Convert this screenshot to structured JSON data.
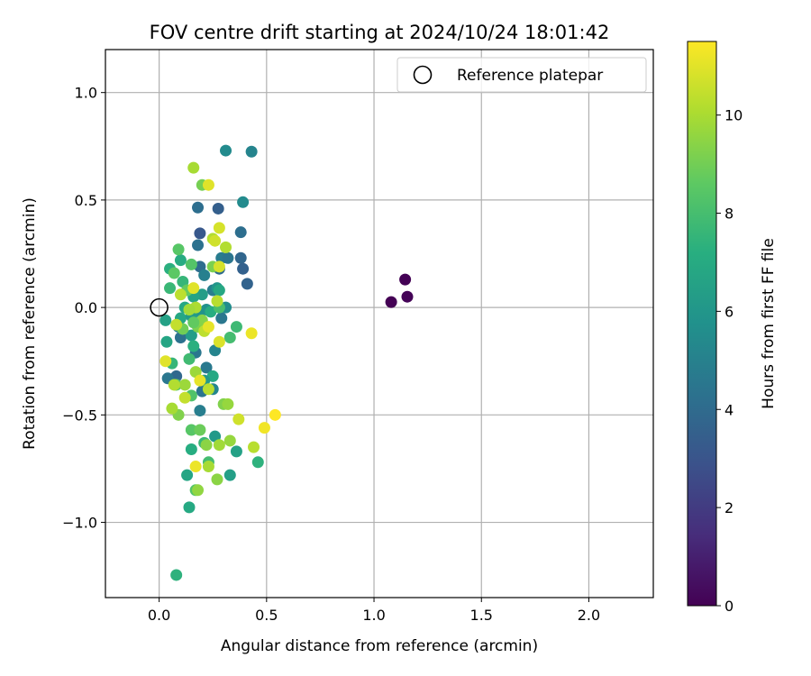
{
  "chart_data": {
    "type": "scatter",
    "title": "FOV centre drift starting at 2024/10/24 18:01:42",
    "xlabel": "Angular distance from reference (arcmin)",
    "ylabel": "Rotation from reference (arcmin)",
    "xlim": [
      -0.25,
      2.3
    ],
    "ylim": [
      -1.35,
      1.2
    ],
    "xticks": [
      0.0,
      0.5,
      1.0,
      1.5,
      2.0
    ],
    "xtick_labels": [
      "0.0",
      "0.5",
      "1.0",
      "1.5",
      "2.0"
    ],
    "yticks": [
      -1.0,
      -0.5,
      0.0,
      0.5,
      1.0
    ],
    "ytick_labels": [
      "−1.0",
      "−0.5",
      "0.0",
      "0.5",
      "1.0"
    ],
    "grid": true,
    "colormap": "viridis",
    "colorbar": {
      "label": "Hours from first FF file",
      "range": [
        0,
        11.5
      ],
      "ticks": [
        0,
        2,
        4,
        6,
        8,
        10
      ],
      "tick_labels": [
        "0",
        "2",
        "4",
        "6",
        "8",
        "10"
      ]
    },
    "legend": {
      "position": "top-right",
      "entries": [
        "Reference platepar"
      ]
    },
    "reference_point": {
      "x": 0.0,
      "y": 0.0,
      "color": "#000000"
    },
    "points": [
      {
        "x": 1.08,
        "y": 0.025,
        "h": 0.0
      },
      {
        "x": 1.145,
        "y": 0.13,
        "h": 0.05
      },
      {
        "x": 1.155,
        "y": 0.05,
        "h": 0.1
      },
      {
        "x": 0.31,
        "y": 0.73,
        "h": 5.5
      },
      {
        "x": 0.43,
        "y": 0.725,
        "h": 5.2
      },
      {
        "x": 0.39,
        "y": 0.49,
        "h": 5.5
      },
      {
        "x": 0.275,
        "y": 0.46,
        "h": 3.5
      },
      {
        "x": 0.18,
        "y": 0.465,
        "h": 4.2
      },
      {
        "x": 0.38,
        "y": 0.35,
        "h": 4.2
      },
      {
        "x": 0.19,
        "y": 0.345,
        "h": 3.2
      },
      {
        "x": 0.18,
        "y": 0.29,
        "h": 4.3
      },
      {
        "x": 0.38,
        "y": 0.23,
        "h": 3.8
      },
      {
        "x": 0.29,
        "y": 0.23,
        "h": 4.8
      },
      {
        "x": 0.32,
        "y": 0.23,
        "h": 4.5
      },
      {
        "x": 0.39,
        "y": 0.18,
        "h": 3.6
      },
      {
        "x": 0.28,
        "y": 0.18,
        "h": 4.0
      },
      {
        "x": 0.41,
        "y": 0.11,
        "h": 3.7
      },
      {
        "x": 0.19,
        "y": 0.19,
        "h": 4.1
      },
      {
        "x": 0.21,
        "y": 0.15,
        "h": 5.0
      },
      {
        "x": 0.25,
        "y": 0.08,
        "h": 4.9
      },
      {
        "x": 0.27,
        "y": 0.09,
        "h": 6.0
      },
      {
        "x": 0.31,
        "y": 0.0,
        "h": 5.6
      },
      {
        "x": 0.29,
        "y": -0.05,
        "h": 4.6
      },
      {
        "x": 0.22,
        "y": -0.01,
        "h": 5.8
      },
      {
        "x": 0.2,
        "y": 0.06,
        "h": 6.4
      },
      {
        "x": 0.19,
        "y": -0.02,
        "h": 5.9
      },
      {
        "x": 0.09,
        "y": -0.09,
        "h": 5.2
      },
      {
        "x": 0.1,
        "y": -0.14,
        "h": 4.3
      },
      {
        "x": 0.08,
        "y": -0.32,
        "h": 3.9
      },
      {
        "x": 0.04,
        "y": -0.33,
        "h": 4.6
      },
      {
        "x": 0.17,
        "y": -0.21,
        "h": 4.6
      },
      {
        "x": 0.22,
        "y": -0.28,
        "h": 4.7
      },
      {
        "x": 0.26,
        "y": -0.2,
        "h": 5.2
      },
      {
        "x": 0.2,
        "y": -0.39,
        "h": 4.5
      },
      {
        "x": 0.25,
        "y": -0.38,
        "h": 5.3
      },
      {
        "x": 0.19,
        "y": -0.48,
        "h": 4.9
      },
      {
        "x": 0.36,
        "y": -0.67,
        "h": 6.6
      },
      {
        "x": 0.26,
        "y": -0.6,
        "h": 6.2
      },
      {
        "x": 0.33,
        "y": -0.78,
        "h": 6.5
      },
      {
        "x": 0.15,
        "y": -0.66,
        "h": 7.2
      },
      {
        "x": 0.13,
        "y": -0.78,
        "h": 6.8
      },
      {
        "x": 0.14,
        "y": -0.93,
        "h": 7.0
      },
      {
        "x": 0.08,
        "y": -1.245,
        "h": 7.4
      },
      {
        "x": 0.03,
        "y": -0.06,
        "h": 6.6
      },
      {
        "x": 0.035,
        "y": -0.16,
        "h": 6.8
      },
      {
        "x": 0.1,
        "y": -0.05,
        "h": 6.9
      },
      {
        "x": 0.16,
        "y": 0.05,
        "h": 6.7
      },
      {
        "x": 0.15,
        "y": -0.04,
        "h": 6.3
      },
      {
        "x": 0.12,
        "y": 0.0,
        "h": 6.9
      },
      {
        "x": 0.25,
        "y": -0.32,
        "h": 7.0
      },
      {
        "x": 0.21,
        "y": -0.34,
        "h": 6.2
      },
      {
        "x": 0.46,
        "y": -0.72,
        "h": 7.4
      },
      {
        "x": 0.28,
        "y": 0.08,
        "h": 6.9
      },
      {
        "x": 0.24,
        "y": -0.02,
        "h": 7.2
      },
      {
        "x": 0.15,
        "y": -0.13,
        "h": 6.4
      },
      {
        "x": 0.16,
        "y": -0.18,
        "h": 7.3
      },
      {
        "x": 0.1,
        "y": 0.22,
        "h": 7.1
      },
      {
        "x": 0.11,
        "y": 0.12,
        "h": 7.6
      },
      {
        "x": 0.14,
        "y": -0.24,
        "h": 7.9
      },
      {
        "x": 0.06,
        "y": -0.26,
        "h": 7.6
      },
      {
        "x": 0.05,
        "y": 0.09,
        "h": 7.7
      },
      {
        "x": 0.05,
        "y": 0.18,
        "h": 7.3
      },
      {
        "x": 0.07,
        "y": 0.16,
        "h": 8.6
      },
      {
        "x": 0.09,
        "y": 0.27,
        "h": 8.5
      },
      {
        "x": 0.15,
        "y": 0.2,
        "h": 8.4
      },
      {
        "x": 0.28,
        "y": 0.0,
        "h": 8.1
      },
      {
        "x": 0.33,
        "y": -0.14,
        "h": 8.0
      },
      {
        "x": 0.36,
        "y": -0.09,
        "h": 7.8
      },
      {
        "x": 0.15,
        "y": -0.41,
        "h": 8.3
      },
      {
        "x": 0.17,
        "y": -0.85,
        "h": 8.4
      },
      {
        "x": 0.21,
        "y": -0.63,
        "h": 7.7
      },
      {
        "x": 0.23,
        "y": -0.72,
        "h": 8.0
      },
      {
        "x": 0.15,
        "y": -0.57,
        "h": 8.5
      },
      {
        "x": 0.19,
        "y": -0.57,
        "h": 8.9
      },
      {
        "x": 0.2,
        "y": 0.57,
        "h": 9.1
      },
      {
        "x": 0.25,
        "y": 0.19,
        "h": 9.2
      },
      {
        "x": 0.13,
        "y": 0.08,
        "h": 8.8
      },
      {
        "x": 0.18,
        "y": -0.09,
        "h": 9.2
      },
      {
        "x": 0.2,
        "y": -0.06,
        "h": 9.4
      },
      {
        "x": 0.16,
        "y": -0.07,
        "h": 8.7
      },
      {
        "x": 0.11,
        "y": -0.1,
        "h": 9.0
      },
      {
        "x": 0.3,
        "y": -0.45,
        "h": 9.3
      },
      {
        "x": 0.32,
        "y": -0.45,
        "h": 9.7
      },
      {
        "x": 0.27,
        "y": -0.8,
        "h": 9.5
      },
      {
        "x": 0.08,
        "y": -0.36,
        "h": 8.5
      },
      {
        "x": 0.09,
        "y": -0.5,
        "h": 9.3
      },
      {
        "x": 0.12,
        "y": -0.36,
        "h": 9.8
      },
      {
        "x": 0.17,
        "y": -0.3,
        "h": 9.8
      },
      {
        "x": 0.18,
        "y": -0.85,
        "h": 9.6
      },
      {
        "x": 0.22,
        "y": -0.64,
        "h": 9.5
      },
      {
        "x": 0.28,
        "y": -0.64,
        "h": 9.9
      },
      {
        "x": 0.33,
        "y": -0.62,
        "h": 9.7
      },
      {
        "x": 0.23,
        "y": -0.74,
        "h": 10.0
      },
      {
        "x": 0.44,
        "y": -0.65,
        "h": 10.3
      },
      {
        "x": 0.16,
        "y": 0.65,
        "h": 10.0
      },
      {
        "x": 0.25,
        "y": 0.32,
        "h": 10.2
      },
      {
        "x": 0.31,
        "y": 0.28,
        "h": 10.2
      },
      {
        "x": 0.27,
        "y": 0.03,
        "h": 10.3
      },
      {
        "x": 0.17,
        "y": 0.0,
        "h": 10.1
      },
      {
        "x": 0.14,
        "y": -0.01,
        "h": 9.9
      },
      {
        "x": 0.1,
        "y": 0.06,
        "h": 10.4
      },
      {
        "x": 0.08,
        "y": -0.08,
        "h": 10.5
      },
      {
        "x": 0.21,
        "y": -0.11,
        "h": 10.4
      },
      {
        "x": 0.23,
        "y": -0.38,
        "h": 10.3
      },
      {
        "x": 0.07,
        "y": -0.36,
        "h": 10.2
      },
      {
        "x": 0.06,
        "y": -0.47,
        "h": 10.0
      },
      {
        "x": 0.12,
        "y": -0.42,
        "h": 10.5
      },
      {
        "x": 0.37,
        "y": -0.52,
        "h": 10.7
      },
      {
        "x": 0.28,
        "y": 0.37,
        "h": 10.8
      },
      {
        "x": 0.23,
        "y": 0.57,
        "h": 11.0
      },
      {
        "x": 0.26,
        "y": 0.31,
        "h": 10.7
      },
      {
        "x": 0.28,
        "y": 0.19,
        "h": 10.8
      },
      {
        "x": 0.16,
        "y": 0.09,
        "h": 11.0
      },
      {
        "x": 0.23,
        "y": -0.09,
        "h": 11.1
      },
      {
        "x": 0.28,
        "y": -0.16,
        "h": 10.9
      },
      {
        "x": 0.03,
        "y": -0.25,
        "h": 11.0
      },
      {
        "x": 0.19,
        "y": -0.34,
        "h": 11.1
      },
      {
        "x": 0.43,
        "y": -0.12,
        "h": 11.2
      },
      {
        "x": 0.17,
        "y": -0.74,
        "h": 11.2
      },
      {
        "x": 0.49,
        "y": -0.56,
        "h": 11.3
      },
      {
        "x": 0.54,
        "y": -0.5,
        "h": 11.5
      }
    ]
  }
}
